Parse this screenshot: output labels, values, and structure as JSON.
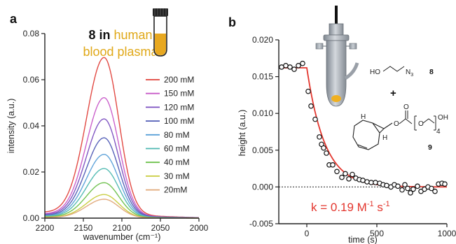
{
  "chart_data": [
    {
      "type": "line",
      "panel_label": "a",
      "annotation": {
        "compound": "8",
        "word_in": "in",
        "line1_gold": "human",
        "line2_gold": "blood plasma"
      },
      "xlabel": "wavenumber (cm⁻¹)",
      "ylabel": "intensity (a.u.)",
      "xlim": [
        2200,
        2000
      ],
      "ylim": [
        0,
        0.08
      ],
      "xticks": [
        2200,
        2150,
        2100,
        2050,
        2000
      ],
      "yticks": [
        "0.00",
        "0.02",
        "0.04",
        "0.06",
        "0.08"
      ],
      "peak_center": 2123,
      "baseline_high_end": 0.0025,
      "baseline_low_end": 0.0002,
      "series": [
        {
          "name": "200 mM",
          "color": "#e0403a",
          "peak": 0.068
        },
        {
          "name": "150 mM",
          "color": "#c85ac8",
          "peak": 0.051
        },
        {
          "name": "120 mM",
          "color": "#7b4fc0",
          "peak": 0.042
        },
        {
          "name": "100 mM",
          "color": "#4f5bb5",
          "peak": 0.034
        },
        {
          "name": "80 mM",
          "color": "#5aa0d8",
          "peak": 0.027
        },
        {
          "name": "60 mM",
          "color": "#4db8b0",
          "peak": 0.021
        },
        {
          "name": "40 mM",
          "color": "#6cc04a",
          "peak": 0.015
        },
        {
          "name": "30 mM",
          "color": "#c8cc3c",
          "peak": 0.01
        },
        {
          "name": "20mM",
          "color": "#e0a878",
          "peak": 0.008
        }
      ]
    },
    {
      "type": "scatter",
      "panel_label": "b",
      "xlabel": "time (s)",
      "ylabel": "height (a.u.)",
      "xlim": [
        -200,
        1000
      ],
      "ylim": [
        -0.005,
        0.02
      ],
      "xticks": [
        "0",
        "500",
        "1000"
      ],
      "yticks": [
        "-0.005",
        "0.000",
        "0.005",
        "0.010",
        "0.015",
        "0.020"
      ],
      "points": [
        [
          -180,
          0.0163
        ],
        [
          -150,
          0.0165
        ],
        [
          -120,
          0.0163
        ],
        [
          -90,
          0.016
        ],
        [
          -60,
          0.0165
        ],
        [
          -30,
          0.0168
        ],
        [
          10,
          0.013
        ],
        [
          30,
          0.011
        ],
        [
          60,
          0.0092
        ],
        [
          90,
          0.0068
        ],
        [
          105,
          0.0058
        ],
        [
          120,
          0.0053
        ],
        [
          140,
          0.0046
        ],
        [
          160,
          0.003
        ],
        [
          185,
          0.003
        ],
        [
          215,
          0.0021
        ],
        [
          250,
          0.0013
        ],
        [
          275,
          0.0018
        ],
        [
          300,
          0.0011
        ],
        [
          325,
          0.0017
        ],
        [
          350,
          0.0012
        ],
        [
          375,
          0.001
        ],
        [
          400,
          0.0009
        ],
        [
          430,
          0.0007
        ],
        [
          460,
          0.0006
        ],
        [
          490,
          0.0006
        ],
        [
          520,
          0.0005
        ],
        [
          545,
          0.0003
        ],
        [
          570,
          0.0002
        ],
        [
          600,
          0.0
        ],
        [
          625,
          0.0003
        ],
        [
          650,
          0.0001
        ],
        [
          680,
          -0.0004
        ],
        [
          700,
          0.0003
        ],
        [
          720,
          -0.0002
        ],
        [
          740,
          -0.0008
        ],
        [
          760,
          -0.0003
        ],
        [
          790,
          0.0001
        ],
        [
          815,
          -0.0006
        ],
        [
          840,
          -0.0003
        ],
        [
          865,
          0.0
        ],
        [
          890,
          -0.0002
        ],
        [
          915,
          -0.0006
        ],
        [
          940,
          0.0004
        ],
        [
          965,
          0.0005
        ],
        [
          985,
          0.0004
        ]
      ],
      "fit": {
        "plateau": 0.0162,
        "t0": 0,
        "rate": 0.0078,
        "color": "#e3362e"
      },
      "zero_line": {
        "y": 0,
        "style": "dotted"
      },
      "rate_text": {
        "prefix": "k = 0.19 M",
        "exp1": "-1",
        "mid": " s",
        "exp2": "-1"
      },
      "scheme": {
        "reagent1_formula": "HO",
        "reagent1_azide": "N",
        "reagent1_azide_sub": "3",
        "reagent1_label": "8",
        "plus": "+",
        "reagent2_label": "9",
        "h_top": "H",
        "h_bottom": "H",
        "o1": "O",
        "o2": "O",
        "o3": "O",
        "oh": "OH",
        "repeat_sub": "4"
      }
    }
  ]
}
